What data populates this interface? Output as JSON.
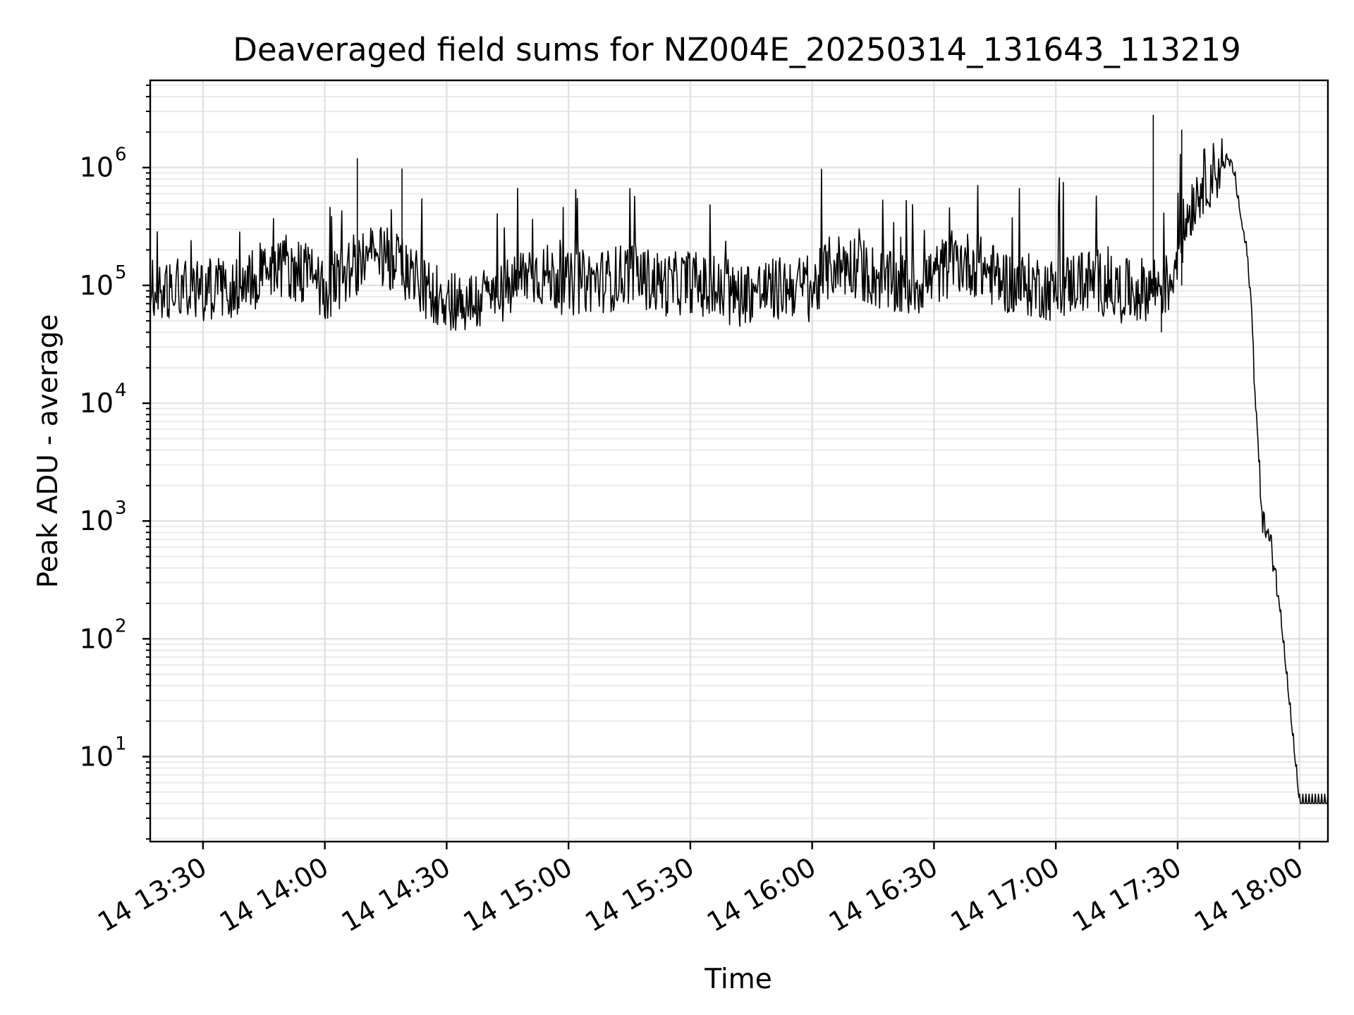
{
  "chart_data": {
    "type": "line",
    "title": "Deaveraged field sums for NZ004E_20250314_131643_113219",
    "xlabel": "Time",
    "ylabel": "Peak ADU - average",
    "yscale": "log",
    "grid": true,
    "x_range": [
      "14 13:17",
      "14 18:07"
    ],
    "ylim": [
      1.9,
      5500000
    ],
    "x_ticks": [
      "14 13:30",
      "14 14:00",
      "14 14:30",
      "14 15:00",
      "14 15:30",
      "14 16:00",
      "14 16:30",
      "14 17:00",
      "14 17:30",
      "14 18:00"
    ],
    "y_ticks": [
      {
        "base": "10",
        "exp": "1",
        "value": 10
      },
      {
        "base": "10",
        "exp": "2",
        "value": 100
      },
      {
        "base": "10",
        "exp": "3",
        "value": 1000
      },
      {
        "base": "10",
        "exp": "4",
        "value": 10000
      },
      {
        "base": "10",
        "exp": "5",
        "value": 100000
      },
      {
        "base": "10",
        "exp": "6",
        "value": 1000000
      }
    ],
    "line_color": "#000000",
    "series": [
      {
        "x": [
          "13:17",
          "13:20",
          "13:25",
          "13:30",
          "13:35",
          "13:40",
          "13:45",
          "13:50",
          "13:55",
          "14:00",
          "14:05",
          "14:10",
          "14:15",
          "14:20",
          "14:25",
          "14:30",
          "14:35",
          "14:40",
          "14:45",
          "14:50",
          "14:55",
          "15:00",
          "15:05",
          "15:10",
          "15:15",
          "15:20",
          "15:25",
          "15:30",
          "15:35",
          "15:40",
          "15:45",
          "15:50",
          "15:55",
          "16:00",
          "16:05",
          "16:10",
          "16:15",
          "16:20",
          "16:25",
          "16:30",
          "16:35",
          "16:40",
          "16:45",
          "16:50",
          "16:55",
          "17:00",
          "17:05",
          "17:10",
          "17:15",
          "17:20",
          "17:25",
          "17:28",
          "17:30",
          "17:33",
          "17:36",
          "17:38",
          "17:40",
          "17:42",
          "17:43",
          "17:44",
          "17:45",
          "17:46",
          "17:47",
          "17:48",
          "17:49",
          "17:50",
          "17:51",
          "17:52",
          "17:53",
          "17:54",
          "17:55",
          "18:00",
          "18:05",
          "18:07"
        ],
        "y": [
          100000,
          90000,
          110000,
          90000,
          100000,
          95000,
          140000,
          150000,
          130000,
          90000,
          130000,
          170000,
          170000,
          140000,
          90000,
          80000,
          70000,
          80000,
          90000,
          130000,
          120000,
          100000,
          110000,
          110000,
          130000,
          110000,
          100000,
          110000,
          90000,
          80000,
          90000,
          90000,
          100000,
          90000,
          150000,
          150000,
          120000,
          100000,
          100000,
          120000,
          160000,
          150000,
          120000,
          100000,
          100000,
          90000,
          110000,
          110000,
          90000,
          90000,
          100000,
          100000,
          200000,
          450000,
          750000,
          850000,
          1000000,
          1150000,
          1100000,
          900000,
          500000,
          300000,
          200000,
          80000,
          15000,
          3000,
          1000,
          800,
          600,
          400,
          200,
          4,
          4,
          4
        ]
      }
    ]
  }
}
